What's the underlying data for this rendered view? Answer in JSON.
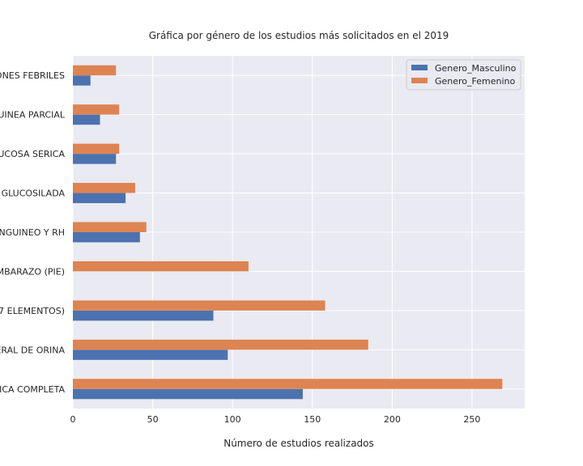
{
  "chart_data": {
    "type": "bar",
    "orientation": "horizontal",
    "title": "Gráfica por género de los estudios más solicitados en el 2019",
    "xlabel": "Número de estudios realizados",
    "ylabel": "",
    "xlim": [
      0,
      283
    ],
    "xticks": [
      0,
      50,
      100,
      150,
      200,
      250
    ],
    "grid": true,
    "legend_position": "top-right",
    "categories": [
      "ICA COMPLETA",
      "ERAL DE ORINA",
      "7 ELEMENTOS)",
      "MBARAZO (PIE)",
      "NGUINEO Y RH",
      "GLUCOSILADA",
      "UCOSA SERICA",
      "UINEA PARCIAL",
      "ONES FEBRILES"
    ],
    "series": [
      {
        "name": "Genero_Masculino",
        "color": "#4c72b0",
        "values": [
          144,
          97,
          88,
          0,
          42,
          33,
          27,
          17,
          11
        ]
      },
      {
        "name": "Genero_Femenino",
        "color": "#dd8452",
        "values": [
          269,
          185,
          158,
          110,
          46,
          39,
          29,
          29,
          27
        ]
      }
    ]
  }
}
